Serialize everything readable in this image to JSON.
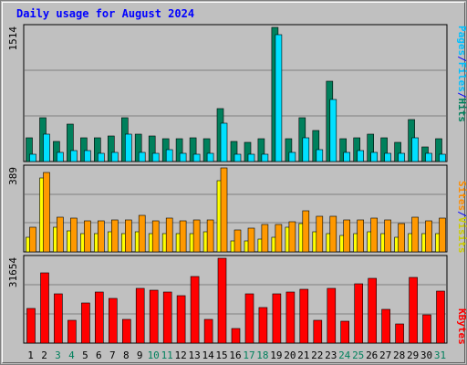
{
  "title": "Daily usage for August 2024",
  "colors": {
    "hits": "#00805c",
    "files": "#00e0ff",
    "visits": "#ffff00",
    "sites": "#ff9900",
    "kbytes": "#ff0000",
    "title_text": "#0000ff",
    "panel_bg": "#c0c0c0",
    "grid": "#808080",
    "weekday_label": "#000000",
    "weekend_label": "#00805c",
    "legend_hits": "#00805c",
    "legend_files": "#00c0ff",
    "legend_sep": "#0000ff",
    "legend_sites": "#ff8c00",
    "legend_visits": "#cccc00",
    "legend_kbytes": "#ff0000"
  },
  "legend": {
    "hits": "Hits",
    "files": "Files",
    "pages": "Pages",
    "visits": "Visits",
    "sites": "Sites",
    "kbytes": "KBytes",
    "sep": "/"
  },
  "chart_data": {
    "type": "bar",
    "title": "Daily usage for August 2024",
    "categories": [
      "1",
      "2",
      "3",
      "4",
      "5",
      "6",
      "7",
      "8",
      "9",
      "10",
      "11",
      "12",
      "13",
      "14",
      "15",
      "16",
      "17",
      "18",
      "19",
      "20",
      "21",
      "22",
      "23",
      "24",
      "25",
      "26",
      "27",
      "28",
      "29",
      "30",
      "31"
    ],
    "weekend_days": [
      "3",
      "4",
      "10",
      "11",
      "17",
      "18",
      "24",
      "25",
      "31"
    ],
    "panels": [
      {
        "name": "hits-files",
        "ymax_label": "1514",
        "ymax": 1514,
        "series": [
          {
            "name": "Hits",
            "values": [
              272,
              495,
              229,
              418,
              272,
              272,
              286,
              495,
              313,
              286,
              258,
              258,
              272,
              258,
              599,
              229,
              216,
              258,
              1514,
              258,
              495,
              353,
              909,
              258,
              272,
              313,
              272,
              216,
              473,
              160,
              258
            ]
          },
          {
            "name": "Files",
            "values": [
              80,
              313,
              108,
              121,
              121,
              94,
              108,
              313,
              108,
              94,
              135,
              94,
              80,
              94,
              435,
              80,
              80,
              80,
              1433,
              108,
              272,
              135,
              698,
              108,
              121,
              108,
              94,
              94,
              272,
              94,
              80
            ]
          }
        ]
      },
      {
        "name": "visits-sites",
        "ymax_label": "389",
        "ymax": 389,
        "series": [
          {
            "name": "Visits",
            "values": [
              67,
              341,
              115,
              99,
              83,
              83,
              91,
              83,
              91,
              83,
              83,
              83,
              83,
              91,
              329,
              51,
              51,
              59,
              67,
              115,
              131,
              91,
              83,
              75,
              83,
              91,
              83,
              67,
              83,
              83,
              83
            ]
          },
          {
            "name": "Sites",
            "values": [
              115,
              369,
              161,
              155,
              145,
              145,
              150,
              150,
              171,
              145,
              155,
              145,
              150,
              150,
              389,
              102,
              112,
              125,
              125,
              140,
              192,
              165,
              165,
              150,
              150,
              155,
              150,
              130,
              161,
              145,
              155
            ]
          }
        ]
      },
      {
        "name": "kbytes",
        "ymax_label": "31654",
        "ymax": 31654,
        "series": [
          {
            "name": "KBytes",
            "values": [
              12800,
              26300,
              18500,
              8600,
              14900,
              18900,
              16800,
              8900,
              20500,
              19800,
              18900,
              17600,
              24800,
              9000,
              31654,
              5500,
              18300,
              13400,
              18300,
              18900,
              20200,
              8500,
              20300,
              8200,
              22200,
              24200,
              12500,
              7000,
              24600,
              10600,
              19500
            ]
          }
        ]
      }
    ]
  }
}
